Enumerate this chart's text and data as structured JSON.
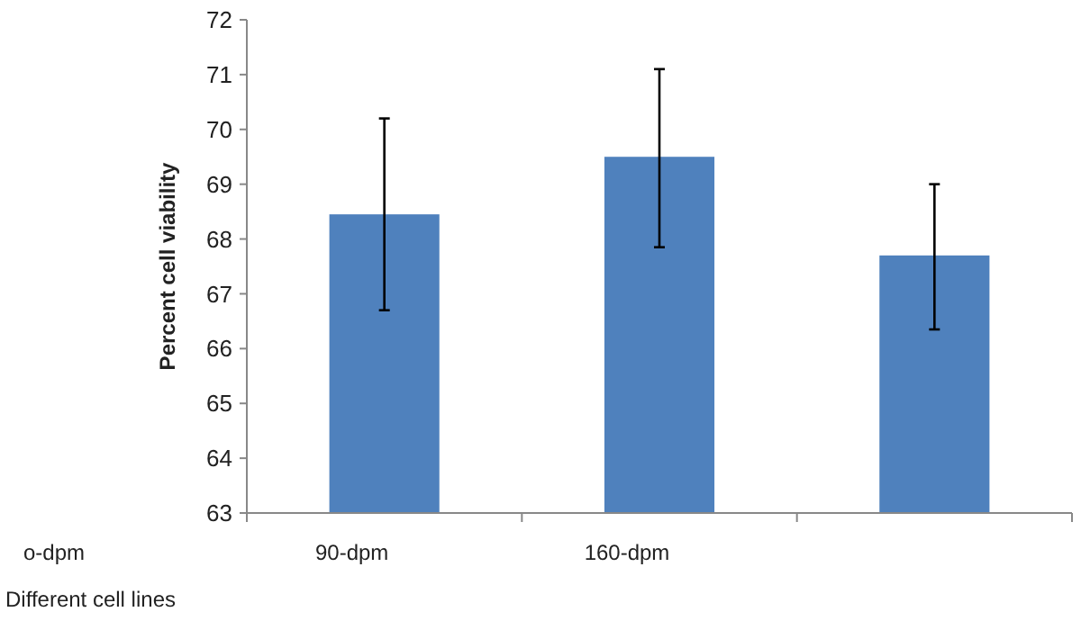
{
  "chart_data": {
    "type": "bar",
    "ylabel": "Percent cell viability",
    "xlabel": "Different cell lines",
    "categories": [
      "90-dpm",
      "160-dpm",
      null
    ],
    "values": [
      68.45,
      69.5,
      67.7
    ],
    "errors": [
      [
        66.7,
        70.2
      ],
      [
        67.85,
        71.1
      ],
      [
        66.35,
        69.0
      ]
    ],
    "color": "#4f81bd",
    "ylim": [
      63,
      72
    ],
    "yticks": [
      63,
      64,
      65,
      66,
      67,
      68,
      69,
      70,
      71,
      72
    ],
    "grid": false,
    "annotations": [
      "o-dpm"
    ]
  }
}
